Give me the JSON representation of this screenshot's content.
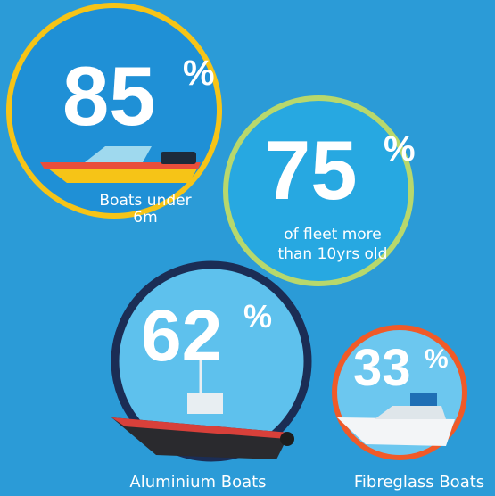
{
  "stats": [
    {
      "value": 85,
      "unit": "%",
      "label": [
        "Boats under",
        "6m"
      ]
    },
    {
      "value": 75,
      "unit": "%",
      "label": [
        "of fleet more",
        "than 10yrs old"
      ]
    },
    {
      "value": 62,
      "unit": "%",
      "label": [
        "Aluminium Boats"
      ]
    },
    {
      "value": 33,
      "unit": "%",
      "label": [
        "Fibreglass Boats"
      ]
    }
  ]
}
